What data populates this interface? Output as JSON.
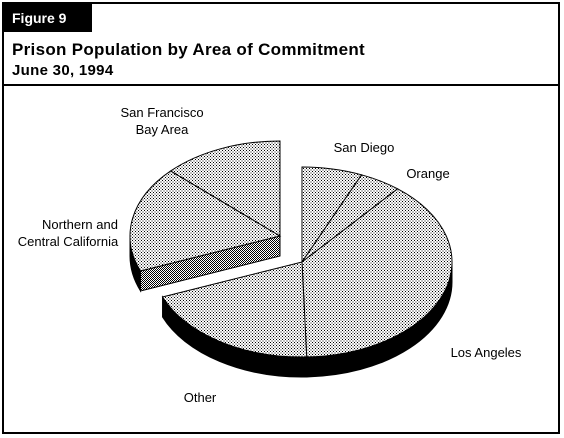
{
  "figure_label": "Figure 9",
  "title": "Prison Population by Area of Commitment",
  "subtitle": "June 30, 1994",
  "chart_data": {
    "type": "pie",
    "style": "3d-exploded",
    "title": "Prison Population by Area of Commitment",
    "subtitle": "June 30, 1994",
    "slices": [
      {
        "label": "San Diego",
        "value": 6.5
      },
      {
        "label": "Orange",
        "value": 4.5
      },
      {
        "label": "Los Angeles",
        "value": 38.5
      },
      {
        "label": "Other",
        "value": 19.5
      },
      {
        "label": "Northern and Central California",
        "value": 18.0
      },
      {
        "label": "San Francisco Bay Area",
        "value": 13.0
      }
    ],
    "exploded_group": [
      "Northern and Central California",
      "San Francisco Bay Area"
    ]
  },
  "labels": {
    "san_diego": "San Diego",
    "orange": "Orange",
    "los_angeles": "Los Angeles",
    "other": "Other",
    "sf_line1": "San Francisco",
    "sf_line2": "Bay Area",
    "ncc_line1": "Northern and",
    "ncc_line2": "Central California"
  }
}
